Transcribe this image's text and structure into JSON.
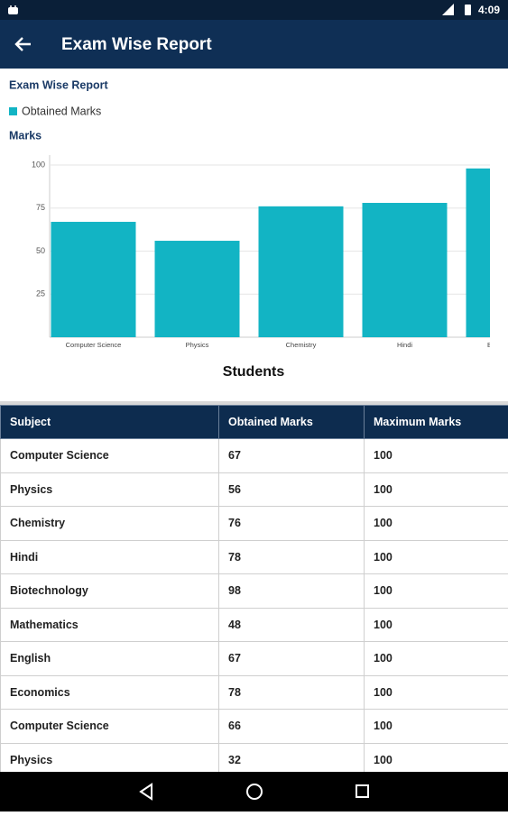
{
  "status_bar": {
    "time": "4:09"
  },
  "app_bar": {
    "title": "Exam Wise Report"
  },
  "chart_data": {
    "type": "bar",
    "title": "Exam Wise Report",
    "ylabel": "Marks",
    "xlabel": "Students",
    "categories": [
      "Computer Science",
      "Physics",
      "Chemistry",
      "Hindi",
      "Biotechnology"
    ],
    "series": [
      {
        "name": "Obtained Marks",
        "color": "#12b4c4",
        "values": [
          67,
          56,
          76,
          78,
          98
        ]
      }
    ],
    "ylim": [
      0,
      100
    ],
    "yticks": [
      25,
      50,
      75,
      100
    ],
    "grid": true
  },
  "table": {
    "columns": [
      "Subject",
      "Obtained Marks",
      "Maximum Marks"
    ],
    "rows": [
      [
        "Computer Science",
        67,
        100
      ],
      [
        "Physics",
        56,
        100
      ],
      [
        "Chemistry",
        76,
        100
      ],
      [
        "Hindi",
        78,
        100
      ],
      [
        "Biotechnology",
        98,
        100
      ],
      [
        "Mathematics",
        48,
        100
      ],
      [
        "English",
        67,
        100
      ],
      [
        "Economics",
        78,
        100
      ],
      [
        "Computer Science",
        66,
        100
      ],
      [
        "Physics",
        32,
        100
      ]
    ]
  }
}
